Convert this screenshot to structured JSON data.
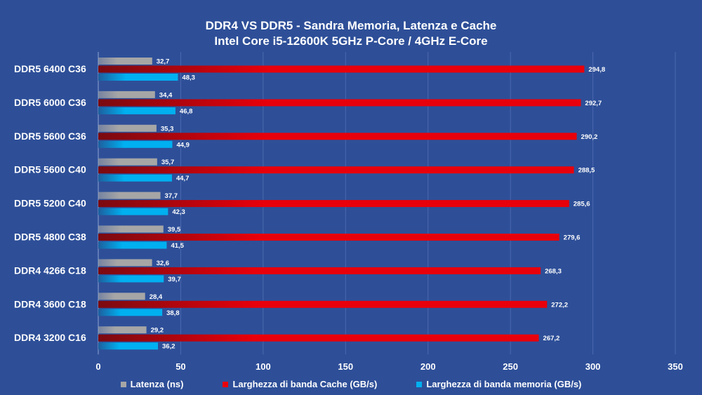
{
  "chart_data": {
    "type": "bar",
    "orientation": "horizontal",
    "title": "DDR4 VS DDR5 - Sandra Memoria, Latenza e Cache",
    "subtitle": "Intel Core i5-12600K 5GHz P-Core / 4GHz E-Core",
    "categories": [
      "DDR5 6400 C36",
      "DDR5 6000 C36",
      "DDR5 5600 C36",
      "DDR5 5600 C40",
      "DDR5 5200 C40",
      "DDR5 4800 C38",
      "DDR4 4266 C18",
      "DDR4 3600 C18",
      "DDR4 3200 C16"
    ],
    "series": [
      {
        "name": "Latenza (ns)",
        "color": "#a6a6a6",
        "values": [
          32.7,
          34.4,
          35.3,
          35.7,
          37.7,
          39.5,
          32.6,
          28.4,
          29.2
        ],
        "labels": [
          "32,7",
          "34,4",
          "35,3",
          "35,7",
          "37,7",
          "39,5",
          "32,6",
          "28,4",
          "29,2"
        ]
      },
      {
        "name": "Larghezza di banda Cache (GB/s)",
        "color": "#e8000b",
        "values": [
          294.8,
          292.7,
          290.2,
          288.5,
          285.6,
          279.6,
          268.3,
          272.2,
          267.2
        ],
        "labels": [
          "294,8",
          "292,7",
          "290,2",
          "288,5",
          "285,6",
          "279,6",
          "268,3",
          "272,2",
          "267,2"
        ]
      },
      {
        "name": "Larghezza di banda memoria (GB/s)",
        "color": "#00b0f0",
        "values": [
          48.3,
          46.8,
          44.9,
          44.7,
          42.3,
          41.5,
          39.7,
          38.8,
          36.2
        ],
        "labels": [
          "48,3",
          "46,8",
          "44,9",
          "44,7",
          "42,3",
          "41,5",
          "39,7",
          "38,8",
          "36,2"
        ]
      }
    ],
    "xlim": [
      0,
      350
    ],
    "xticks": [
      0,
      50,
      100,
      150,
      200,
      250,
      300,
      350
    ],
    "grid": true,
    "legend": "bottom",
    "background": "#2e4f98"
  }
}
